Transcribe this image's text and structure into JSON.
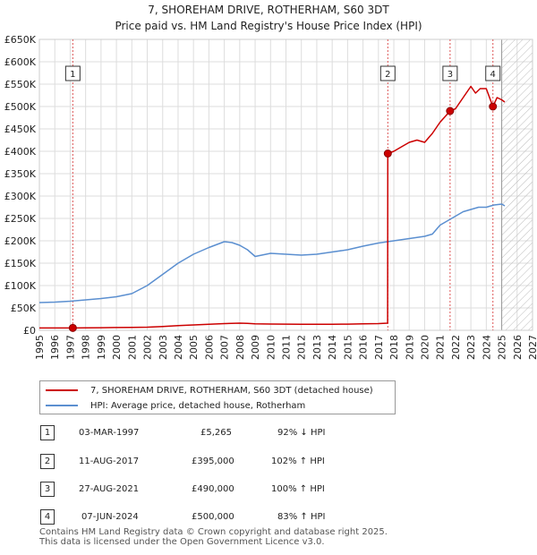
{
  "title": "7, SHOREHAM DRIVE, ROTHERHAM, S60 3DT",
  "subtitle": "Price paid vs. HM Land Registry's House Price Index (HPI)",
  "colors": {
    "red": "#cc0000",
    "blue": "#5b8fd0",
    "grid": "#dddddd",
    "marker_line": "#dd5555",
    "hatch": "#bbbbbb"
  },
  "chart_data": {
    "type": "line",
    "title": "7, SHOREHAM DRIVE, ROTHERHAM, S60 3DT",
    "subtitle": "Price paid vs. HM Land Registry's House Price Index (HPI)",
    "xlim": [
      1995,
      2027
    ],
    "ylim": [
      0,
      650000
    ],
    "xticks": [
      1995,
      1996,
      1997,
      1998,
      1999,
      2000,
      2001,
      2002,
      2003,
      2004,
      2005,
      2006,
      2007,
      2008,
      2009,
      2010,
      2011,
      2012,
      2013,
      2014,
      2015,
      2016,
      2017,
      2018,
      2019,
      2020,
      2021,
      2022,
      2023,
      2024,
      2025,
      2026,
      2027
    ],
    "yticks": [
      0,
      50000,
      100000,
      150000,
      200000,
      250000,
      300000,
      350000,
      400000,
      450000,
      500000,
      550000,
      600000,
      650000
    ],
    "ytick_labels": [
      "£0",
      "£50K",
      "£100K",
      "£150K",
      "£200K",
      "£250K",
      "£300K",
      "£350K",
      "£400K",
      "£450K",
      "£500K",
      "£550K",
      "£600K",
      "£650K"
    ],
    "grid": true,
    "hatch_from": 2025.0,
    "series": [
      {
        "name": "7, SHOREHAM DRIVE, ROTHERHAM, S60 3DT (detached house)",
        "color": "#cc0000",
        "x": [
          1995.0,
          1996.0,
          1997.17,
          1998,
          1999,
          2000,
          2001,
          2002,
          2003,
          2004,
          2005,
          2006,
          2007,
          2008,
          2008.5,
          2009,
          2010,
          2011,
          2012,
          2013,
          2014,
          2015,
          2016,
          2017.0,
          2017.6,
          2017.61,
          2018,
          2018.5,
          2019,
          2019.5,
          2020,
          2020.5,
          2021,
          2021.65,
          2022,
          2022.5,
          2023,
          2023.3,
          2023.6,
          2024,
          2024.43,
          2024.7,
          2025.0,
          2025.2
        ],
        "y": [
          5300,
          5300,
          5265,
          5500,
          5800,
          6100,
          6500,
          7000,
          8500,
          10500,
          12000,
          13500,
          15000,
          16000,
          15500,
          14500,
          14000,
          13800,
          13600,
          13500,
          13600,
          13800,
          14500,
          15000,
          16000,
          395000,
          400000,
          410000,
          420000,
          425000,
          420000,
          440000,
          465000,
          490000,
          495000,
          520000,
          545000,
          530000,
          540000,
          540000,
          500000,
          520000,
          515000,
          510000
        ]
      },
      {
        "name": "HPI: Average price, detached house, Rotherham",
        "color": "#5b8fd0",
        "x": [
          1995.0,
          1996.0,
          1997.0,
          1998.0,
          1999.0,
          2000.0,
          2001.0,
          2002.0,
          2003.0,
          2004.0,
          2005.0,
          2006.0,
          2007.0,
          2007.5,
          2008.0,
          2008.5,
          2009.0,
          2010.0,
          2011.0,
          2012.0,
          2013.0,
          2014.0,
          2015.0,
          2016.0,
          2017.0,
          2018.0,
          2019.0,
          2020.0,
          2020.5,
          2021.0,
          2021.5,
          2022.0,
          2022.5,
          2023.0,
          2023.5,
          2024.0,
          2024.5,
          2025.0,
          2025.2
        ],
        "y": [
          62000,
          63000,
          65000,
          68000,
          71000,
          75000,
          82000,
          100000,
          125000,
          150000,
          170000,
          185000,
          198000,
          196000,
          190000,
          180000,
          165000,
          172000,
          170000,
          168000,
          170000,
          175000,
          180000,
          188000,
          195000,
          200000,
          205000,
          210000,
          215000,
          235000,
          245000,
          255000,
          265000,
          270000,
          275000,
          275000,
          280000,
          282000,
          278000
        ]
      }
    ],
    "sale_markers": [
      {
        "num": "1",
        "x": 1997.17,
        "y": 5265
      },
      {
        "num": "2",
        "x": 2017.61,
        "y": 395000
      },
      {
        "num": "3",
        "x": 2021.65,
        "y": 490000
      },
      {
        "num": "4",
        "x": 2024.43,
        "y": 500000
      }
    ]
  },
  "legend": [
    {
      "label": "7, SHOREHAM DRIVE, ROTHERHAM, S60 3DT (detached house)",
      "color": "#cc0000"
    },
    {
      "label": "HPI: Average price, detached house, Rotherham",
      "color": "#5b8fd0"
    }
  ],
  "sales": [
    {
      "num": "1",
      "date": "03-MAR-1997",
      "price": "£5,265",
      "hpi": "92% ↓ HPI"
    },
    {
      "num": "2",
      "date": "11-AUG-2017",
      "price": "£395,000",
      "hpi": "102% ↑ HPI"
    },
    {
      "num": "3",
      "date": "27-AUG-2021",
      "price": "£490,000",
      "hpi": "100% ↑ HPI"
    },
    {
      "num": "4",
      "date": "07-JUN-2024",
      "price": "£500,000",
      "hpi": "83% ↑ HPI"
    }
  ],
  "footer": {
    "line1": "Contains HM Land Registry data © Crown copyright and database right 2025.",
    "line2": "This data is licensed under the Open Government Licence v3.0."
  }
}
